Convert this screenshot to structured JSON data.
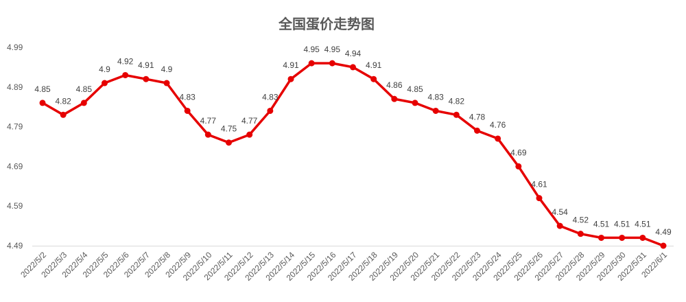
{
  "chart_data": {
    "type": "line",
    "title": "全国蛋价走势图",
    "xlabel": "",
    "ylabel": "",
    "ylim": [
      4.49,
      4.99
    ],
    "yticks": [
      "4.49",
      "4.59",
      "4.69",
      "4.79",
      "4.89",
      "4.99"
    ],
    "grid": false,
    "legend": "none",
    "line_color": "#e60000",
    "categories": [
      "2022/5/2",
      "2022/5/3",
      "2022/5/4",
      "2022/5/5",
      "2022/5/6",
      "2022/5/7",
      "2022/5/8",
      "2022/5/9",
      "2022/5/10",
      "2022/5/11",
      "2022/5/12",
      "2022/5/13",
      "2022/5/14",
      "2022/5/15",
      "2022/5/16",
      "2022/5/17",
      "2022/5/18",
      "2022/5/19",
      "2022/5/20",
      "2022/5/21",
      "2022/5/22",
      "2022/5/23",
      "2022/5/24",
      "2022/5/25",
      "2022/5/26",
      "2022/5/27",
      "2022/5/28",
      "2022/5/29",
      "2022/5/30",
      "2022/5/31",
      "2022/6/1"
    ],
    "values": [
      4.85,
      4.82,
      4.85,
      4.9,
      4.92,
      4.91,
      4.9,
      4.83,
      4.77,
      4.75,
      4.77,
      4.83,
      4.91,
      4.95,
      4.95,
      4.94,
      4.91,
      4.86,
      4.85,
      4.83,
      4.82,
      4.78,
      4.76,
      4.69,
      4.61,
      4.54,
      4.52,
      4.51,
      4.51,
      4.51,
      4.49
    ],
    "value_labels": [
      "4.85",
      "4.82",
      "4.85",
      "4.9",
      "4.92",
      "4.91",
      "4.9",
      "4.83",
      "4.77",
      "4.75",
      "4.77",
      "4.83",
      "4.91",
      "4.95",
      "4.95",
      "4.94",
      "4.91",
      "4.86",
      "4.85",
      "4.83",
      "4.82",
      "4.78",
      "4.76",
      "4.69",
      "4.61",
      "4.54",
      "4.52",
      "4.51",
      "4.51",
      "4.51",
      "4.49"
    ]
  }
}
